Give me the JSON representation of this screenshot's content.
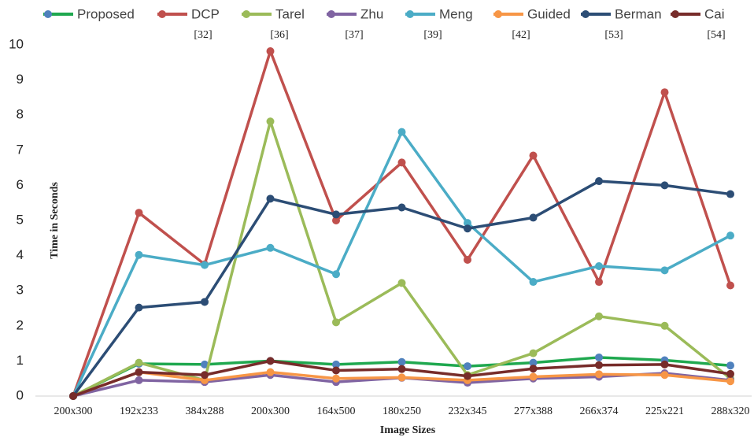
{
  "chart_data": {
    "type": "line",
    "x_label": "Image Sizes",
    "y_label": "Time in Seconds",
    "categories": [
      "200x300",
      "192x233",
      "384x288",
      "200x300",
      "164x500",
      "180x250",
      "232x345",
      "277x388",
      "266x374",
      "225x221",
      "288x320"
    ],
    "ylim": [
      0,
      10
    ],
    "yticks": [
      0,
      1,
      2,
      3,
      4,
      5,
      6,
      7,
      8,
      9,
      10
    ],
    "grid": false,
    "legend": "top",
    "series": [
      {
        "name": "Proposed",
        "color": "#1fa84f",
        "marker_color": "#4f81bd",
        "values": [
          0,
          0.92,
          0.9,
          1.0,
          0.9,
          0.97,
          0.85,
          0.95,
          1.1,
          1.02,
          0.87
        ]
      },
      {
        "name": "DCP",
        "reference": "[32]",
        "color": "#c0504d",
        "values": [
          0,
          5.22,
          3.75,
          9.82,
          5.0,
          6.65,
          3.88,
          6.85,
          3.25,
          8.65,
          3.15
        ]
      },
      {
        "name": "Tarel",
        "reference": "[36]",
        "color": "#9bbb59",
        "values": [
          0,
          0.95,
          0.45,
          7.82,
          2.1,
          3.22,
          0.6,
          1.22,
          2.27,
          2.0,
          0.5
        ]
      },
      {
        "name": "Zhu",
        "reference": "[37]",
        "color": "#8064a2",
        "values": [
          0,
          0.45,
          0.4,
          0.6,
          0.4,
          0.52,
          0.38,
          0.5,
          0.55,
          0.65,
          0.45
        ]
      },
      {
        "name": "Meng",
        "reference": "[39]",
        "color": "#4bacc6",
        "values": [
          0,
          4.02,
          3.73,
          4.22,
          3.47,
          7.52,
          4.93,
          3.25,
          3.7,
          3.58,
          4.57
        ]
      },
      {
        "name": "Guided",
        "reference": "[42]",
        "color": "#f79646",
        "values": [
          0,
          0.68,
          0.45,
          0.68,
          0.5,
          0.53,
          0.45,
          0.55,
          0.62,
          0.6,
          0.42
        ]
      },
      {
        "name": "Berman",
        "reference": "[53]",
        "color": "#2c4d75",
        "values": [
          0,
          2.52,
          2.68,
          5.62,
          5.17,
          5.37,
          4.77,
          5.08,
          6.12,
          6.0,
          5.75
        ]
      },
      {
        "name": "Cai",
        "reference": "[54]",
        "color": "#772c2a",
        "values": [
          0,
          0.68,
          0.6,
          1.0,
          0.73,
          0.77,
          0.57,
          0.78,
          0.88,
          0.9,
          0.63
        ]
      }
    ]
  }
}
